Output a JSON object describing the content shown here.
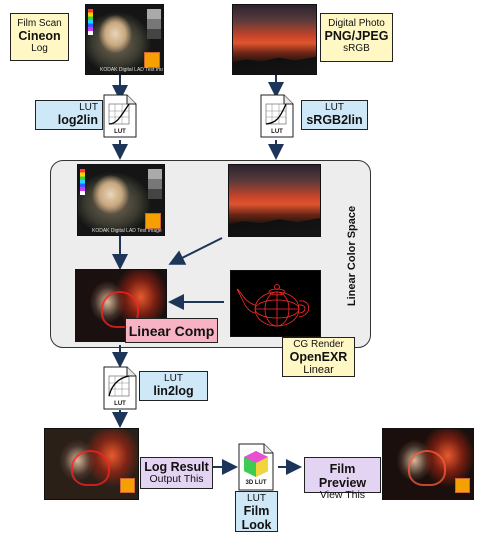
{
  "film_scan": {
    "line1": "Film Scan",
    "line2": "Cineon",
    "line3": "Log"
  },
  "digital_photo": {
    "line1": "Digital Photo",
    "line2": "PNG/JPEG",
    "line3": "sRGB"
  },
  "lut_log2lin": {
    "line1": "LUT",
    "line2": "log2lin"
  },
  "lut_srgb2lin": {
    "line1": "LUT",
    "line2": "sRGB2lin"
  },
  "lut_lin2log": {
    "line1": "LUT",
    "line2": "lin2log"
  },
  "lut_icon_caption": "LUT",
  "lut3d_icon_caption": "3D LUT",
  "film_thumb_caption": "KODAK Digital LAD Test Image",
  "linear_panel": {
    "title": "Linear Color Space"
  },
  "linear_comp": {
    "label": "Linear Comp"
  },
  "cg_render": {
    "line1": "CG Render",
    "line2": "OpenEXR",
    "line3": "Linear"
  },
  "log_result": {
    "line1": "Log Result",
    "line2": "Output This"
  },
  "film_look": {
    "line1": "LUT",
    "line2": "Film",
    "line3": "Look"
  },
  "film_preview": {
    "line1": "Film Preview",
    "line2": "View This"
  },
  "colors": {
    "arrow": "#1c3558",
    "yellow": "#fff7c4",
    "blue": "#cfe8f8",
    "purple": "#e3d4f3",
    "pink": "#f7b3c4"
  }
}
